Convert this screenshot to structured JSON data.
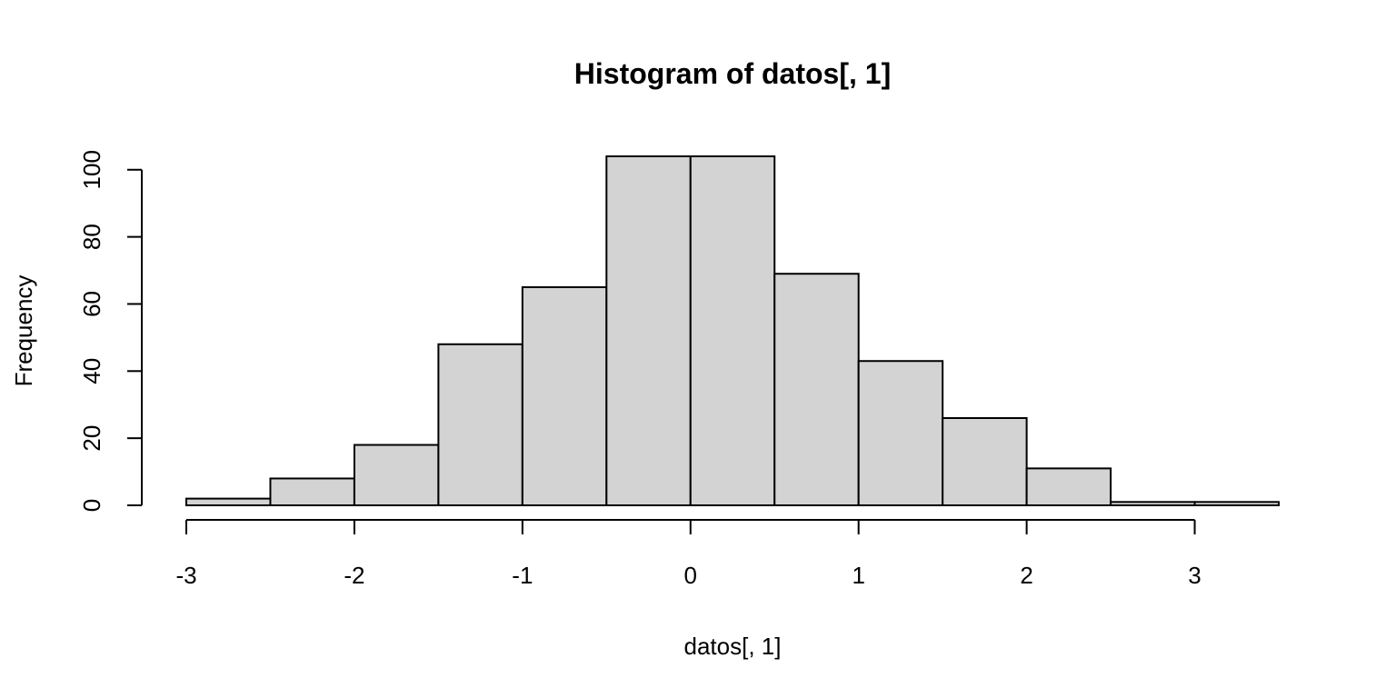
{
  "chart_data": {
    "type": "bar",
    "title": "Histogram of datos[, 1]",
    "xlabel": "datos[, 1]",
    "ylabel": "Frequency",
    "bins": [
      {
        "start": -3.0,
        "end": -2.5,
        "count": 2
      },
      {
        "start": -2.5,
        "end": -2.0,
        "count": 8
      },
      {
        "start": -2.0,
        "end": -1.5,
        "count": 18
      },
      {
        "start": -1.5,
        "end": -1.0,
        "count": 48
      },
      {
        "start": -1.0,
        "end": -0.5,
        "count": 65
      },
      {
        "start": -0.5,
        "end": 0.0,
        "count": 104
      },
      {
        "start": 0.0,
        "end": 0.5,
        "count": 104
      },
      {
        "start": 0.5,
        "end": 1.0,
        "count": 69
      },
      {
        "start": 1.0,
        "end": 1.5,
        "count": 43
      },
      {
        "start": 1.5,
        "end": 2.0,
        "count": 26
      },
      {
        "start": 2.0,
        "end": 2.5,
        "count": 11
      },
      {
        "start": 2.5,
        "end": 3.0,
        "count": 1
      },
      {
        "start": 3.0,
        "end": 3.5,
        "count": 1
      }
    ],
    "xlim": [
      -3,
      3.5
    ],
    "ylim": [
      0,
      104
    ],
    "x_ticks": [
      -3,
      -2,
      -1,
      0,
      1,
      2,
      3
    ],
    "x_tick_labels": [
      "-3",
      "-2",
      "-1",
      "0",
      "1",
      "2",
      "3"
    ],
    "y_ticks": [
      0,
      20,
      40,
      60,
      80,
      100
    ],
    "y_tick_labels": [
      "0",
      "20",
      "40",
      "60",
      "80",
      "100"
    ],
    "grid": false,
    "colors": {
      "bar_fill": "#d3d3d3",
      "bar_stroke": "#000000",
      "background": "#ffffff"
    }
  }
}
